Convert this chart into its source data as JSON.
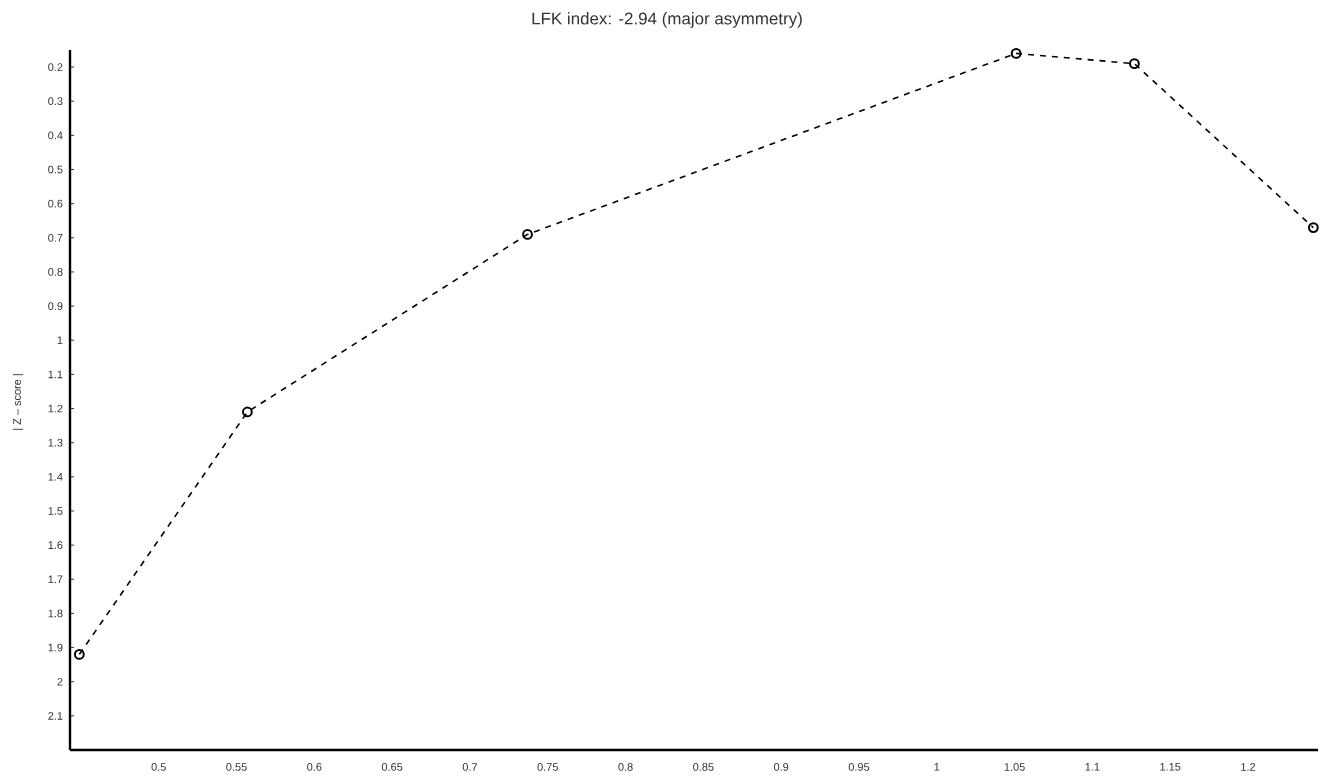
{
  "chart_data": {
    "type": "line",
    "title": "LFK index: -2.94 (major asymmetry)",
    "ylabel": "| Z – score |",
    "x": [
      0.449,
      0.557,
      0.737,
      1.051,
      1.127,
      1.242
    ],
    "values": [
      1.92,
      1.21,
      0.69,
      0.16,
      0.19,
      0.67
    ],
    "color": "#000000",
    "marker": "circle",
    "line_style": "dashed",
    "xlim": [
      0.443,
      1.245
    ],
    "ylim": [
      2.2,
      0.15
    ],
    "xticks": [
      0.5,
      0.55,
      0.6,
      0.65,
      0.7,
      0.75,
      0.8,
      0.85,
      0.9,
      0.95,
      1,
      1.05,
      1.1,
      1.15,
      1.2
    ],
    "yticks": [
      0.2,
      0.3,
      0.4,
      0.5,
      0.6,
      0.7,
      0.8,
      0.9,
      1,
      1.1,
      1.2,
      1.3,
      1.4,
      1.5,
      1.6,
      1.7,
      1.8,
      1.9,
      2,
      2.1
    ]
  }
}
